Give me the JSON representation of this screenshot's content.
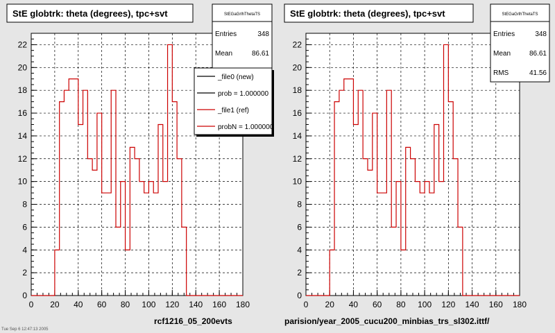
{
  "panels": [
    {
      "title": "StE globtrk: theta (degrees), tpc+svt",
      "stats": {
        "name": "StEGaGrlhThetaTS",
        "rows": [
          {
            "label": "Entries",
            "value": "348"
          },
          {
            "label": "Mean",
            "value": "86.61"
          }
        ]
      },
      "legend": [
        {
          "label": "_file0 (new)",
          "color": "#000000"
        },
        {
          "label": "prob = 1.000000",
          "color": "#000000"
        },
        {
          "label": "_file1 (ref)",
          "color": "#cc0000"
        },
        {
          "label": "probN = 1.000000",
          "color": "#cc0000"
        }
      ],
      "caption": "rcf1216_05_200evts",
      "footnote": "Tue Sep 6 12:47:13 2005"
    },
    {
      "title": "StE globtrk: theta (degrees), tpc+svt",
      "stats": {
        "name": "StEGaGrlhThetaTS",
        "rows": [
          {
            "label": "Entries",
            "value": "348"
          },
          {
            "label": "Mean",
            "value": "86.61"
          },
          {
            "label": "RMS",
            "value": "41.56"
          }
        ]
      },
      "legend": [],
      "caption": "parision/year_2005_cucu200_minbias_trs_sl302.ittf/",
      "footnote": ""
    }
  ],
  "chart_data": {
    "type": "histogram",
    "bin_width": 4,
    "x_edges_start": 0,
    "xlim": [
      0,
      180
    ],
    "ylim": [
      0,
      23
    ],
    "x_ticks": [
      0,
      20,
      40,
      60,
      80,
      100,
      120,
      140,
      160,
      180
    ],
    "y_ticks": [
      0,
      2,
      4,
      6,
      8,
      10,
      12,
      14,
      16,
      18,
      20,
      22
    ],
    "grid": true,
    "series": [
      {
        "color": "#cc0000",
        "values": [
          0,
          0,
          0,
          0,
          0,
          4,
          17,
          18,
          19,
          19,
          15,
          18,
          12,
          11,
          16,
          9,
          9,
          18,
          6,
          10,
          4,
          13,
          12,
          10,
          9,
          10,
          9,
          15,
          10,
          22,
          17,
          12,
          6,
          0,
          0,
          0,
          0,
          0,
          0,
          0,
          0,
          0,
          0,
          0,
          0
        ]
      }
    ]
  }
}
